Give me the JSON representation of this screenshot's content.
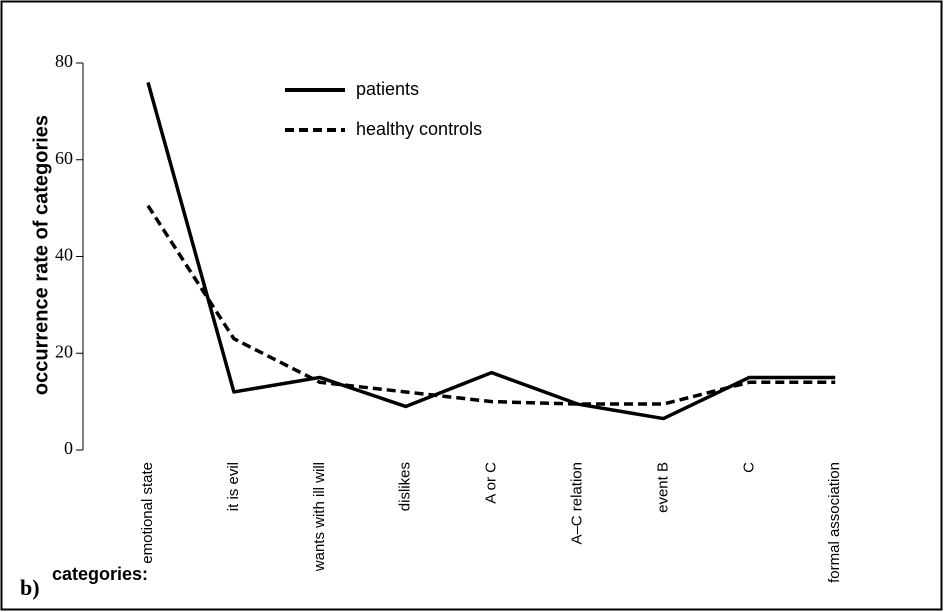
{
  "chart_data": {
    "type": "line",
    "panel_label": "b)",
    "xlabel": "categories:",
    "ylabel": "occurrence rate of categories",
    "categories": [
      "emotional state",
      "it is evil",
      "wants with ill will",
      "dislikes",
      "A or C",
      "A–C relation",
      "event B",
      "C",
      "formal association"
    ],
    "series": [
      {
        "name": "patients",
        "color": "#000000",
        "dash": "solid",
        "values": [
          76,
          12,
          15,
          9,
          16,
          9.5,
          6.5,
          15,
          15
        ]
      },
      {
        "name": "healthy controls",
        "color": "#000000",
        "dash": "dashed",
        "values": [
          50.5,
          23,
          14,
          12,
          10,
          9.5,
          9.5,
          14,
          14
        ]
      }
    ],
    "ylim": [
      0,
      80
    ],
    "yticks": [
      0,
      20,
      40,
      60,
      80
    ]
  }
}
